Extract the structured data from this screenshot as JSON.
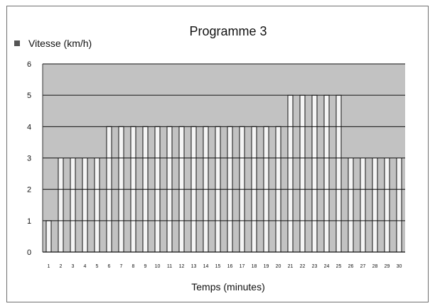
{
  "chart_data": {
    "type": "bar",
    "title": "Programme 3",
    "xlabel": "Temps (minutes)",
    "ylabel": "",
    "legend": "Vitesse (km/h)",
    "legend_placement": "top-left",
    "ylim": [
      0,
      6
    ],
    "yticks": [
      "0",
      "1",
      "2",
      "3",
      "4",
      "5",
      "6"
    ],
    "grid": true,
    "categories": [
      "1",
      "2",
      "3",
      "4",
      "5",
      "6",
      "7",
      "8",
      "9",
      "10",
      "11",
      "12",
      "13",
      "14",
      "15",
      "16",
      "17",
      "18",
      "19",
      "20",
      "21",
      "22",
      "23",
      "24",
      "25",
      "26",
      "27",
      "28",
      "29",
      "30"
    ],
    "values": [
      1,
      3,
      3,
      3,
      3,
      4,
      4,
      4,
      4,
      4,
      4,
      4,
      4,
      4,
      4,
      4,
      4,
      4,
      4,
      4,
      5,
      5,
      5,
      5,
      5,
      3,
      3,
      3,
      3,
      3
    ],
    "colors": {
      "plot_background": "#c2c2c2",
      "bar_fill": "#f5f5f5",
      "bar_stroke": "#111111",
      "grid": "#111111"
    }
  }
}
